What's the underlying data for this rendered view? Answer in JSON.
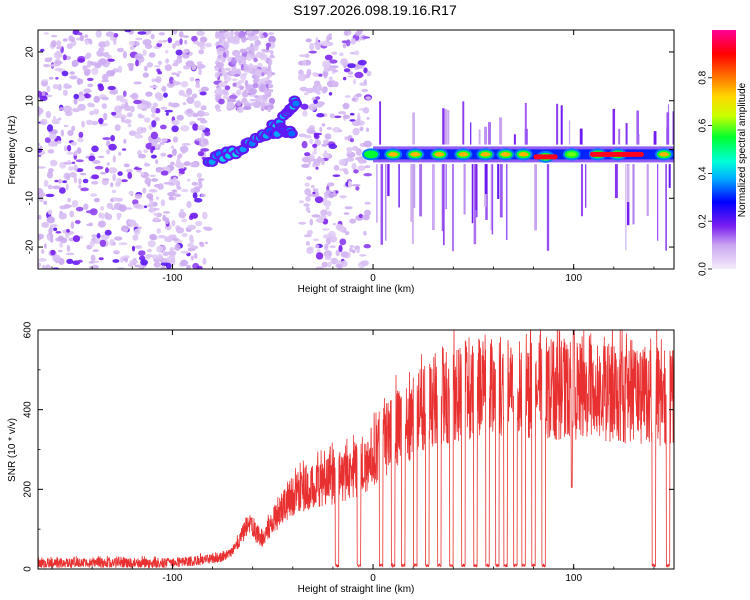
{
  "title": "S197.2026.098.19.16.R17",
  "chart_data": [
    {
      "type": "heatmap",
      "name": "spectrogram",
      "xlabel": "Height of straight line (km)",
      "ylabel": "Frequency (Hz)",
      "xlim": [
        -167,
        150
      ],
      "ylim": [
        -24.5,
        24.5
      ],
      "xticks": [
        -100,
        0,
        100
      ],
      "yticks": [
        -20,
        -10,
        0,
        10,
        20
      ],
      "colorbar": {
        "label": "Normalized spectral amplitude",
        "range": [
          0,
          1
        ],
        "ticks": [
          0.0,
          0.2,
          0.4,
          0.6,
          0.8
        ],
        "colormap": "rainbow: white-lilac, purple, blue, cyan, green, yellow, orange, red, magenta"
      },
      "ridge_segments": [
        {
          "x": [
            -82,
            -72,
            -62,
            -52,
            -42,
            -38
          ],
          "y": [
            -2,
            -1,
            1,
            4,
            8,
            10
          ],
          "amplitude": 0.35
        },
        {
          "x": [
            -55,
            -45,
            -40
          ],
          "y": [
            3,
            4,
            3
          ],
          "amplitude": 0.3
        }
      ],
      "bursts": [
        {
          "x": -1,
          "y": -1,
          "amplitude": 0.55
        },
        {
          "x": 10,
          "y": -1,
          "amplitude": 0.75
        },
        {
          "x": 21,
          "y": -1,
          "amplitude": 0.75
        },
        {
          "x": 33,
          "y": -1,
          "amplitude": 0.75
        },
        {
          "x": 45,
          "y": -1,
          "amplitude": 0.75
        },
        {
          "x": 56,
          "y": -1,
          "amplitude": 0.75
        },
        {
          "x": 66,
          "y": -1,
          "amplitude": 0.75
        },
        {
          "x": 75,
          "y": -1,
          "amplitude": 0.75
        },
        {
          "x": 86,
          "y": -1.5,
          "amplitude": 0.9
        },
        {
          "x": 99,
          "y": -1,
          "amplitude": 0.6
        },
        {
          "x": 112,
          "y": -1,
          "amplitude": 0.85
        },
        {
          "x": 122,
          "y": -1,
          "amplitude": 0.9
        },
        {
          "x": 145,
          "y": -1,
          "amplitude": 0.75
        }
      ],
      "band": {
        "x_range": [
          0,
          150
        ],
        "y_center": -1,
        "amplitude_min": 0.3
      },
      "noise_regions": [
        {
          "x_range": [
            -167,
            -82
          ],
          "amplitude": 0.15
        },
        {
          "x_range": [
            -78,
            -50
          ],
          "amplitude": 0.1,
          "y_range": [
            8,
            24.5
          ]
        },
        {
          "x_range": [
            -36,
            -2
          ],
          "amplitude": 0.15
        }
      ]
    },
    {
      "type": "line",
      "name": "snr",
      "xlabel": "Height of straight line (km)",
      "ylabel": "SNR (10 * v/v)",
      "xlim": [
        -167,
        150
      ],
      "ylim": [
        0,
        600
      ],
      "xticks": [
        -100,
        0,
        100
      ],
      "yticks": [
        0,
        200,
        400,
        600
      ],
      "color": "#e83030",
      "envelope": {
        "x": [
          -167,
          -100,
          -90,
          -80,
          -75,
          -70,
          -62,
          -55,
          -45,
          -35,
          -25,
          -15,
          -5,
          5,
          20,
          30,
          40,
          50,
          60,
          70,
          80,
          90,
          100,
          110,
          120,
          130,
          140,
          150
        ],
        "y": [
          15,
          15,
          20,
          25,
          30,
          45,
          110,
          75,
          160,
          200,
          220,
          230,
          255,
          320,
          380,
          420,
          440,
          455,
          455,
          450,
          450,
          450,
          445,
          440,
          440,
          435,
          430,
          430
        ]
      },
      "dropouts_x": [
        -18,
        -7,
        4,
        10,
        15,
        21,
        27,
        33,
        39,
        45,
        51,
        57,
        62,
        66,
        71,
        75,
        80,
        85,
        140,
        147
      ],
      "spike": {
        "x": 100,
        "y": 610
      },
      "dip": {
        "x": 99,
        "y": 205
      }
    }
  ]
}
